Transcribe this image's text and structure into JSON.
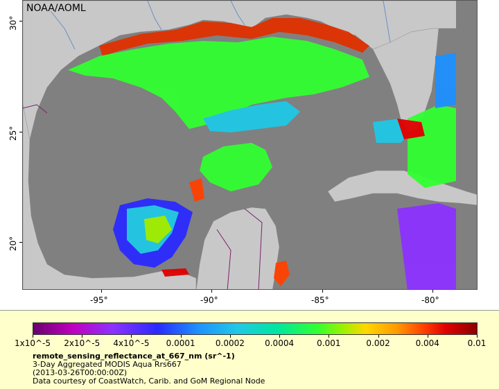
{
  "map": {
    "credit": "NOAA/AOML",
    "lon_labels": [
      "-95°",
      "-90°",
      "-85°",
      "-80°"
    ],
    "lat_labels": [
      "30°",
      "25°",
      "20°"
    ]
  },
  "legend": {
    "tick_labels": [
      "1x10^-5",
      "2x10^-5",
      "4x10^-5",
      "0.0001",
      "0.0002",
      "0.0004",
      "0.001",
      "0.002",
      "0.004",
      "0.01"
    ],
    "variable": "remote_sensing_reflectance_at_667_nm (sr^-1)",
    "product": "3-Day Aggregated MODIS Aqua Rrs667",
    "time": "(2013-03-26T00:00:00Z)",
    "source": "Data courtesy of CoastWatch, Carib. and GoM Regional Node"
  },
  "colors": {
    "land": "#c8c8c8",
    "no_data": "#808080",
    "panel": "#ffffcc"
  }
}
